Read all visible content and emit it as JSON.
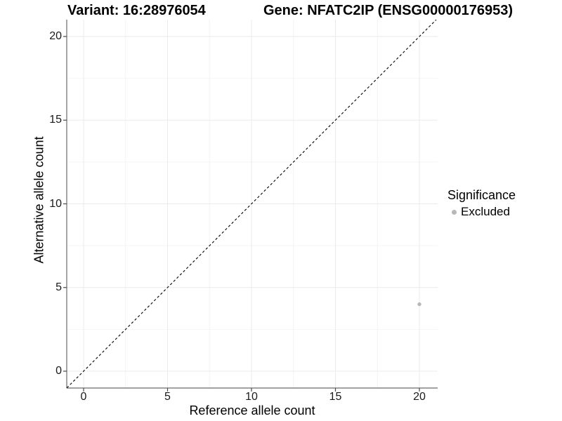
{
  "title": {
    "variant": "Variant: 16:28976054",
    "gene": "Gene: NFATC2IP (ENSG00000176953)"
  },
  "chart_data": {
    "type": "scatter",
    "xlabel": "Reference allele count",
    "ylabel": "Alternative allele count",
    "xlim": [
      -1,
      21
    ],
    "ylim": [
      -1,
      21
    ],
    "x_ticks": [
      0,
      5,
      10,
      15,
      20
    ],
    "y_ticks": [
      0,
      5,
      10,
      15,
      20
    ],
    "x_minor_ticks": [
      2.5,
      7.5,
      12.5,
      17.5
    ],
    "y_minor_ticks": [
      2.5,
      7.5,
      12.5,
      17.5
    ],
    "grid": "major+minor",
    "reference_line": {
      "slope": 1,
      "intercept": 0,
      "style": "dashed",
      "color": "#000000"
    },
    "points": [
      {
        "x": 20,
        "y": 4,
        "significance": "Excluded"
      }
    ],
    "legend": {
      "title": "Significance",
      "position": "right",
      "entries": [
        {
          "label": "Excluded",
          "color": "#b8b8b8"
        }
      ]
    }
  },
  "colors": {
    "point": "#b8b8b8",
    "grid_major": "#ebebeb",
    "grid_minor": "#f4f4f4",
    "axis_line": "#6b6b6b",
    "tick_mark": "#4a4a4a",
    "tick_text": "#1a1a1a",
    "dashed_line": "#000000"
  }
}
